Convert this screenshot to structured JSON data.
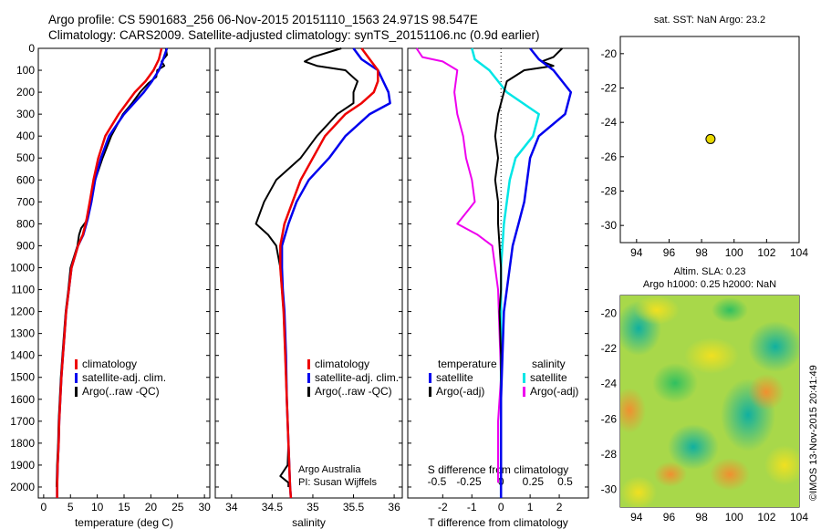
{
  "header": {
    "line1": "Argo profile: CS 5901683_256 06-Nov-2015 20151110_1563 24.971S 98.547E",
    "line2": "Climatology: CARS2009. Satellite-adjusted climatology: synTS_20151106.nc (0.9d earlier)"
  },
  "side_text": "©IMOS 13-Nov-2015 20:41:49",
  "colors": {
    "climatology": "#ee0000",
    "satellite": "#0000ee",
    "argo": "#000000",
    "sat_s": "#00e6e6",
    "argo_s": "#ee00ee",
    "marker": "#e8d800"
  },
  "chart_data": [
    {
      "type": "line",
      "id": "temperature",
      "xlabel": "temperature (deg C)",
      "ylim": [
        0,
        2050
      ],
      "xlim": [
        -1,
        31
      ],
      "xticks": [
        0,
        5,
        10,
        15,
        20,
        25,
        30
      ],
      "yticks": [
        0,
        100,
        200,
        300,
        400,
        500,
        600,
        700,
        800,
        900,
        1000,
        1100,
        1200,
        1300,
        1400,
        1500,
        1600,
        1700,
        1800,
        1900,
        2000
      ],
      "legend": [
        "climatology",
        "satellite-adj. clim.",
        "Argo(..raw -QC)"
      ],
      "series": [
        {
          "key": "climatology",
          "points": [
            [
              22,
              0
            ],
            [
              21.5,
              50
            ],
            [
              20.5,
              100
            ],
            [
              19,
              150
            ],
            [
              17,
              200
            ],
            [
              14,
              300
            ],
            [
              11.5,
              400
            ],
            [
              10.2,
              500
            ],
            [
              9.3,
              600
            ],
            [
              8.6,
              700
            ],
            [
              8,
              780
            ],
            [
              7.3,
              850
            ],
            [
              6.4,
              900
            ],
            [
              5.2,
              1000
            ],
            [
              4.7,
              1100
            ],
            [
              4.2,
              1200
            ],
            [
              3.9,
              1300
            ],
            [
              3.6,
              1400
            ],
            [
              3.3,
              1500
            ],
            [
              3.1,
              1600
            ],
            [
              2.9,
              1700
            ],
            [
              2.8,
              1800
            ],
            [
              2.6,
              1900
            ],
            [
              2.5,
              2000
            ],
            [
              2.5,
              2050
            ]
          ]
        },
        {
          "key": "satellite",
          "points": [
            [
              23,
              0
            ],
            [
              22.3,
              50
            ],
            [
              21.5,
              100
            ],
            [
              20.2,
              150
            ],
            [
              18.7,
              200
            ],
            [
              15,
              300
            ],
            [
              12.2,
              400
            ],
            [
              10.7,
              500
            ],
            [
              9.6,
              600
            ],
            [
              8.9,
              700
            ],
            [
              8.2,
              780
            ],
            [
              7.4,
              850
            ],
            [
              6.4,
              900
            ],
            [
              5.2,
              1000
            ],
            [
              4.7,
              1100
            ],
            [
              4.2,
              1200
            ],
            [
              3.9,
              1300
            ],
            [
              3.6,
              1400
            ],
            [
              3.3,
              1500
            ],
            [
              3.1,
              1600
            ],
            [
              2.9,
              1700
            ],
            [
              2.8,
              1800
            ],
            [
              2.6,
              1900
            ],
            [
              2.5,
              2000
            ],
            [
              2.5,
              2050
            ]
          ]
        },
        {
          "key": "argo",
          "points": [
            [
              22.8,
              0
            ],
            [
              23,
              30
            ],
            [
              22,
              60
            ],
            [
              22.5,
              80
            ],
            [
              21.2,
              100
            ],
            [
              21,
              130
            ],
            [
              19.5,
              160
            ],
            [
              18,
              200
            ],
            [
              16.5,
              250
            ],
            [
              14.8,
              300
            ],
            [
              12.6,
              400
            ],
            [
              11,
              500
            ],
            [
              9.6,
              600
            ],
            [
              8.8,
              700
            ],
            [
              8.2,
              780
            ],
            [
              7,
              820
            ],
            [
              6.6,
              850
            ],
            [
              6.3,
              900
            ],
            [
              5,
              1000
            ],
            [
              4.6,
              1100
            ],
            [
              4.1,
              1200
            ],
            [
              3.8,
              1300
            ],
            [
              3.5,
              1400
            ],
            [
              3.2,
              1500
            ],
            [
              3,
              1600
            ],
            [
              2.8,
              1700
            ],
            [
              2.7,
              1800
            ],
            [
              2.5,
              1900
            ],
            [
              2.4,
              2000
            ]
          ]
        }
      ]
    },
    {
      "type": "line",
      "id": "salinity",
      "xlabel": "salinity",
      "ylim": [
        0,
        2050
      ],
      "xlim": [
        33.8,
        36.1
      ],
      "xticks": [
        34,
        34.5,
        35,
        35.5,
        36
      ],
      "xtick_labels": [
        "34",
        "34.5",
        "35",
        "35.5",
        "36"
      ],
      "legend": [
        "climatology",
        "satellite-adj. clim.",
        "Argo(..raw -QC)"
      ],
      "annotation": [
        "Argo Australia",
        "PI: Susan Wijffels"
      ],
      "series": [
        {
          "key": "climatology",
          "points": [
            [
              35.6,
              0
            ],
            [
              35.7,
              50
            ],
            [
              35.8,
              100
            ],
            [
              35.8,
              150
            ],
            [
              35.75,
              200
            ],
            [
              35.6,
              250
            ],
            [
              35.4,
              300
            ],
            [
              35.15,
              400
            ],
            [
              35.0,
              500
            ],
            [
              34.85,
              600
            ],
            [
              34.75,
              700
            ],
            [
              34.65,
              800
            ],
            [
              34.6,
              900
            ],
            [
              34.6,
              1000
            ],
            [
              34.62,
              1100
            ],
            [
              34.64,
              1200
            ],
            [
              34.66,
              1400
            ],
            [
              34.68,
              1600
            ],
            [
              34.7,
              1800
            ],
            [
              34.72,
              2000
            ],
            [
              34.73,
              2050
            ]
          ]
        },
        {
          "key": "satellite",
          "points": [
            [
              35.5,
              0
            ],
            [
              35.6,
              50
            ],
            [
              35.8,
              100
            ],
            [
              35.93,
              200
            ],
            [
              35.95,
              250
            ],
            [
              35.7,
              300
            ],
            [
              35.4,
              400
            ],
            [
              35.2,
              500
            ],
            [
              34.95,
              600
            ],
            [
              34.8,
              700
            ],
            [
              34.7,
              800
            ],
            [
              34.62,
              900
            ],
            [
              34.62,
              1000
            ],
            [
              34.63,
              1100
            ],
            [
              34.65,
              1200
            ],
            [
              34.67,
              1400
            ],
            [
              34.68,
              1600
            ],
            [
              34.7,
              1800
            ],
            [
              34.72,
              2000
            ],
            [
              34.73,
              2050
            ]
          ]
        },
        {
          "key": "argo",
          "points": [
            [
              35.35,
              0
            ],
            [
              35.0,
              40
            ],
            [
              34.9,
              60
            ],
            [
              35.05,
              80
            ],
            [
              35.4,
              100
            ],
            [
              35.55,
              150
            ],
            [
              35.5,
              200
            ],
            [
              35.5,
              250
            ],
            [
              35.3,
              300
            ],
            [
              35.05,
              400
            ],
            [
              34.85,
              500
            ],
            [
              34.55,
              600
            ],
            [
              34.4,
              700
            ],
            [
              34.3,
              800
            ],
            [
              34.45,
              850
            ],
            [
              34.55,
              900
            ],
            [
              34.6,
              1000
            ],
            [
              34.62,
              1100
            ],
            [
              34.64,
              1200
            ],
            [
              34.66,
              1400
            ],
            [
              34.68,
              1600
            ],
            [
              34.7,
              1800
            ],
            [
              34.69,
              1900
            ],
            [
              34.6,
              1950
            ],
            [
              34.7,
              1980
            ],
            [
              34.7,
              2000
            ]
          ]
        }
      ]
    },
    {
      "type": "line",
      "id": "difference",
      "xlabel": "T difference from climatology",
      "xlabel_top": "S difference from climatology",
      "ylim": [
        0,
        2050
      ],
      "xlim": [
        -3.2,
        3.0
      ],
      "xticks": [
        -2,
        -1,
        0,
        1,
        2
      ],
      "top_xticks": [
        -0.5,
        -0.25,
        0,
        0.25,
        0.5
      ],
      "top_xtick_labels": [
        "-0.5",
        "-0.25",
        "0",
        "0.25",
        "0.5"
      ],
      "legend_title_t": "temperature",
      "legend_title_s": "salinity",
      "legend_t": [
        "satellite",
        "Argo(-adj)"
      ],
      "legend_s": [
        "satellite",
        "Argo(-adj)"
      ],
      "series": [
        {
          "key": "sat_t",
          "points": [
            [
              1,
              0
            ],
            [
              1.3,
              50
            ],
            [
              1.8,
              100
            ],
            [
              2.4,
              200
            ],
            [
              2.2,
              300
            ],
            [
              1.3,
              400
            ],
            [
              1.0,
              500
            ],
            [
              0.9,
              600
            ],
            [
              0.8,
              700
            ],
            [
              0.6,
              800
            ],
            [
              0.4,
              900
            ],
            [
              0.3,
              1000
            ],
            [
              0.2,
              1100
            ],
            [
              0.1,
              1200
            ],
            [
              0.05,
              1400
            ],
            [
              0,
              1600
            ],
            [
              0,
              2050
            ]
          ]
        },
        {
          "key": "argo_t",
          "points": [
            [
              2.1,
              0
            ],
            [
              1.8,
              40
            ],
            [
              1.4,
              60
            ],
            [
              1.8,
              80
            ],
            [
              0.8,
              100
            ],
            [
              0.2,
              150
            ],
            [
              0.1,
              200
            ],
            [
              0,
              250
            ],
            [
              -0.1,
              300
            ],
            [
              -0.2,
              400
            ],
            [
              -0.1,
              500
            ],
            [
              -0.2,
              600
            ],
            [
              -0.1,
              700
            ],
            [
              -0.1,
              800
            ],
            [
              -0.05,
              900
            ],
            [
              0,
              1000
            ],
            [
              0,
              1100
            ],
            [
              -0.05,
              1200
            ],
            [
              0,
              1400
            ],
            [
              0,
              1600
            ],
            [
              0,
              2000
            ]
          ]
        },
        {
          "key": "sat_s",
          "points": [
            [
              -1.0,
              0
            ],
            [
              -0.9,
              50
            ],
            [
              -0.4,
              100
            ],
            [
              0.2,
              200
            ],
            [
              1.3,
              300
            ],
            [
              1.1,
              400
            ],
            [
              0.5,
              500
            ],
            [
              0.3,
              600
            ],
            [
              0.2,
              700
            ],
            [
              0.1,
              800
            ],
            [
              0.05,
              900
            ],
            [
              0,
              1000
            ],
            [
              0,
              2050
            ]
          ]
        },
        {
          "key": "argo_s",
          "points": [
            [
              -2.9,
              0
            ],
            [
              -2.7,
              40
            ],
            [
              -2.0,
              60
            ],
            [
              -1.5,
              100
            ],
            [
              -1.6,
              200
            ],
            [
              -1.5,
              300
            ],
            [
              -1.3,
              400
            ],
            [
              -1.2,
              500
            ],
            [
              -1.0,
              600
            ],
            [
              -0.9,
              700
            ],
            [
              -1.2,
              750
            ],
            [
              -1.5,
              800
            ],
            [
              -0.8,
              850
            ],
            [
              -0.3,
              900
            ],
            [
              -0.2,
              1000
            ],
            [
              -0.1,
              1100
            ],
            [
              -0.05,
              1300
            ],
            [
              0,
              1500
            ],
            [
              -0.1,
              1700
            ],
            [
              -0.1,
              1900
            ],
            [
              -0.1,
              1980
            ]
          ]
        }
      ]
    },
    {
      "type": "scatter",
      "id": "sst_map",
      "title": "sat. SST: NaN Argo: 23.2",
      "xlim": [
        93,
        104
      ],
      "ylim": [
        -31,
        -19
      ],
      "xticks": [
        94,
        96,
        98,
        100,
        102,
        104
      ],
      "yticks": [
        -20,
        -22,
        -24,
        -26,
        -28,
        -30
      ],
      "points": [
        [
          98.55,
          -24.97
        ]
      ]
    },
    {
      "type": "heatmap",
      "id": "sla_map",
      "title1": "Altim. SLA: 0.23",
      "title2": "Argo h1000: 0.25 h2000: NaN",
      "xlim": [
        93,
        104
      ],
      "ylim": [
        -31,
        -19
      ],
      "xticks": [
        94,
        96,
        98,
        100,
        102,
        104
      ],
      "yticks": [
        -20,
        -22,
        -24,
        -26,
        -28,
        -30
      ],
      "point": [
        98.55,
        -24.97
      ]
    }
  ]
}
